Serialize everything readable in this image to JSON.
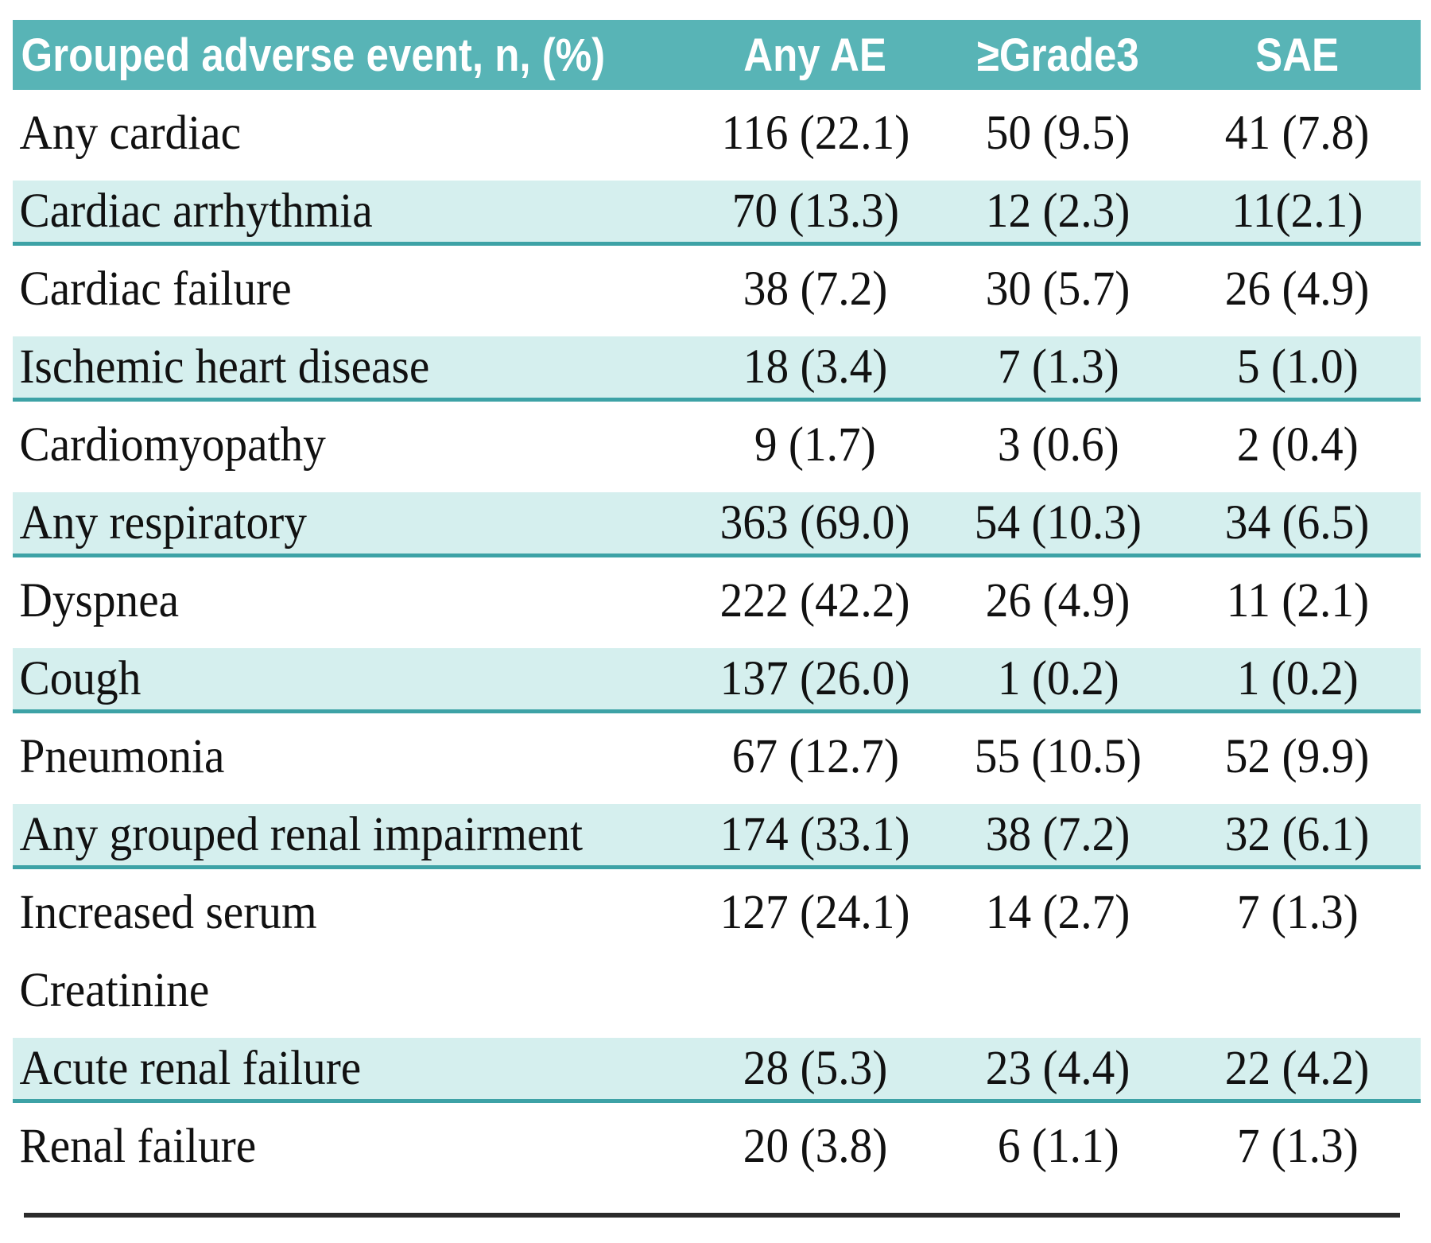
{
  "colors": {
    "header_bg": "#58b4b6",
    "header_text": "#ffffff",
    "shaded_row_bg": "#d5efee",
    "row_separator": "#3da2a6",
    "bottom_rule": "#2b2b2b",
    "body_text": "#111111"
  },
  "chart_data": {
    "type": "table",
    "columns": [
      "Grouped adverse event, n, (%)",
      "Any AE",
      "≥Grade3",
      "SAE"
    ],
    "rows": [
      {
        "label": "Any cardiac",
        "cells": [
          "116 (22.1)",
          "50 (9.5)",
          "41 (7.8)"
        ],
        "shaded": false
      },
      {
        "label": "Cardiac arrhythmia",
        "cells": [
          "70 (13.3)",
          "12 (2.3)",
          "11(2.1)"
        ],
        "shaded": true
      },
      {
        "label": "Cardiac failure",
        "cells": [
          "38 (7.2)",
          "30 (5.7)",
          "26 (4.9)"
        ],
        "shaded": false
      },
      {
        "label": "Ischemic heart disease",
        "cells": [
          "18 (3.4)",
          "7 (1.3)",
          "5 (1.0)"
        ],
        "shaded": true
      },
      {
        "label": "Cardiomyopathy",
        "cells": [
          "9 (1.7)",
          "3 (0.6)",
          "2 (0.4)"
        ],
        "shaded": false
      },
      {
        "label": "Any respiratory",
        "cells": [
          "363 (69.0)",
          "54 (10.3)",
          "34 (6.5)"
        ],
        "shaded": true
      },
      {
        "label": "Dyspnea",
        "cells": [
          "222 (42.2)",
          "26 (4.9)",
          "11 (2.1)"
        ],
        "shaded": false
      },
      {
        "label": "Cough",
        "cells": [
          "137 (26.0)",
          "1 (0.2)",
          "1 (0.2)"
        ],
        "shaded": true
      },
      {
        "label": "Pneumonia",
        "cells": [
          "67 (12.7)",
          "55 (10.5)",
          "52 (9.9)"
        ],
        "shaded": false
      },
      {
        "label": "Any grouped renal impairment",
        "cells": [
          "174 (33.1)",
          "38 (7.2)",
          "32 (6.1)"
        ],
        "shaded": true
      },
      {
        "label": "Increased serum",
        "cells": [
          "127 (24.1)",
          "14 (2.7)",
          "7 (1.3)"
        ],
        "shaded": false
      },
      {
        "label": "Creatinine",
        "cells": [
          "",
          "",
          ""
        ],
        "shaded": false
      },
      {
        "label": "Acute renal failure",
        "cells": [
          "28 (5.3)",
          "23 (4.4)",
          "22 (4.2)"
        ],
        "shaded": true
      },
      {
        "label": "Renal failure",
        "cells": [
          "20 (3.8)",
          "6 (1.1)",
          "7 (1.3)"
        ],
        "shaded": false
      }
    ]
  }
}
